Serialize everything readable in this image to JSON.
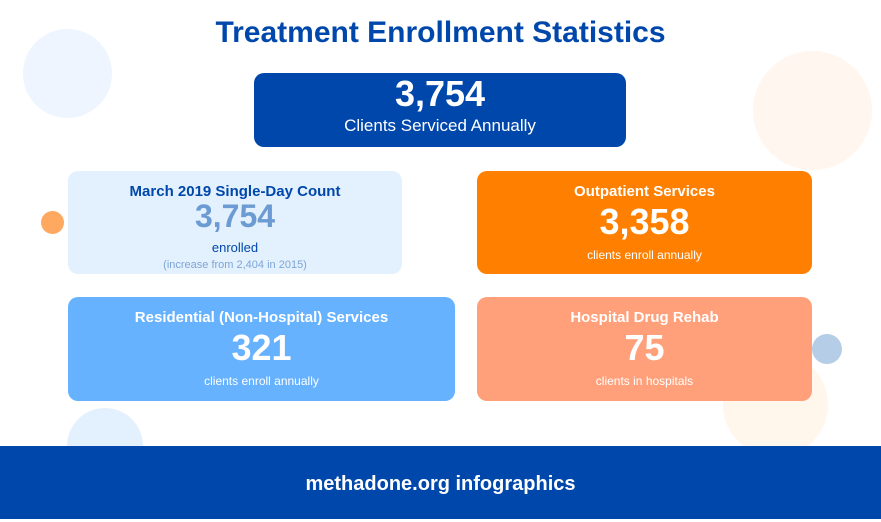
{
  "title": "Treatment Enrollment Statistics",
  "hero": {
    "value": "3,754",
    "label": "Clients Serviced Annually"
  },
  "cards": [
    {
      "title": "March 2019 Single-Day Count",
      "value": "3,754",
      "label": "enrolled",
      "note": "(increase from 2,404 in 2015)",
      "color": "#e3f0fd"
    },
    {
      "title": "Outpatient Services",
      "value": "3,358",
      "label": "clients enroll annually",
      "color": "#ff7f00"
    },
    {
      "title": "Residential (Non-Hospital) Services",
      "value": "321",
      "label": "clients enroll annually",
      "color": "#66b2ff"
    },
    {
      "title": "Hospital Drug Rehab",
      "value": "75",
      "label": "clients in hospitals",
      "color": "#ffa07a"
    }
  ],
  "footer": "methadone.org infographics",
  "colors": {
    "brand": "#0047ab"
  }
}
